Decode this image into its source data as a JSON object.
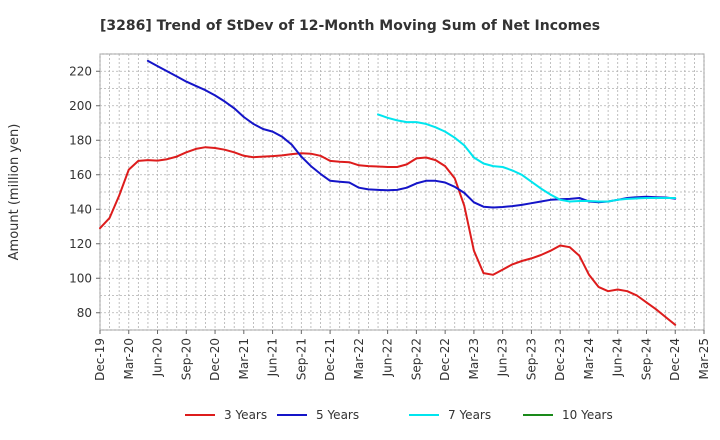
{
  "chart_data": {
    "type": "line",
    "title": "[3286]  Trend of StDev of 12-Month Moving Sum of Net Incomes",
    "ylabel": "Amount (million yen)",
    "xlabel": "",
    "ylim": [
      70,
      230
    ],
    "yticks": [
      80,
      100,
      120,
      140,
      160,
      180,
      200,
      220
    ],
    "x_range": [
      "2019-12",
      "2025-03"
    ],
    "x_ticks": [
      "Dec-19",
      "Mar-20",
      "Jun-20",
      "Sep-20",
      "Dec-20",
      "Mar-21",
      "Jun-21",
      "Sep-21",
      "Dec-21",
      "Mar-22",
      "Jun-22",
      "Sep-22",
      "Dec-22",
      "Mar-23",
      "Jun-23",
      "Sep-23",
      "Dec-23",
      "Mar-24",
      "Jun-24",
      "Sep-24",
      "Dec-24",
      "Mar-25"
    ],
    "grid": true,
    "legend_position": "bottom",
    "series": [
      {
        "name": "3 Years",
        "color": "#dd1c1c",
        "points": [
          [
            "2019-12",
            129
          ],
          [
            "2020-01",
            135
          ],
          [
            "2020-02",
            148
          ],
          [
            "2020-03",
            163
          ],
          [
            "2020-04",
            168
          ],
          [
            "2020-05",
            168.5
          ],
          [
            "2020-06",
            168.2
          ],
          [
            "2020-07",
            169
          ],
          [
            "2020-08",
            170.5
          ],
          [
            "2020-09",
            173
          ],
          [
            "2020-10",
            175
          ],
          [
            "2020-11",
            176
          ],
          [
            "2020-12",
            175.5
          ],
          [
            "2021-01",
            174.5
          ],
          [
            "2021-02",
            173
          ],
          [
            "2021-03",
            171
          ],
          [
            "2021-04",
            170.2
          ],
          [
            "2021-05",
            170.5
          ],
          [
            "2021-06",
            170.8
          ],
          [
            "2021-07",
            171.2
          ],
          [
            "2021-08",
            172
          ],
          [
            "2021-09",
            172.5
          ],
          [
            "2021-10",
            172.2
          ],
          [
            "2021-11",
            171
          ],
          [
            "2021-12",
            168
          ],
          [
            "2022-01",
            167.5
          ],
          [
            "2022-02",
            167.3
          ],
          [
            "2022-03",
            165.5
          ],
          [
            "2022-04",
            165
          ],
          [
            "2022-05",
            164.8
          ],
          [
            "2022-06",
            164.5
          ],
          [
            "2022-07",
            164.5
          ],
          [
            "2022-08",
            166
          ],
          [
            "2022-09",
            169.5
          ],
          [
            "2022-10",
            170
          ],
          [
            "2022-11",
            168.5
          ],
          [
            "2022-12",
            165
          ],
          [
            "2023-01",
            158
          ],
          [
            "2023-02",
            142
          ],
          [
            "2023-03",
            116
          ],
          [
            "2023-04",
            103
          ],
          [
            "2023-05",
            102
          ],
          [
            "2023-06",
            105
          ],
          [
            "2023-07",
            108
          ],
          [
            "2023-08",
            110
          ],
          [
            "2023-09",
            111.5
          ],
          [
            "2023-10",
            113.5
          ],
          [
            "2023-11",
            116
          ],
          [
            "2023-12",
            119
          ],
          [
            "2024-01",
            118
          ],
          [
            "2024-02",
            113
          ],
          [
            "2024-03",
            102
          ],
          [
            "2024-04",
            95
          ],
          [
            "2024-05",
            92.5
          ],
          [
            "2024-06",
            93.5
          ],
          [
            "2024-07",
            92.5
          ],
          [
            "2024-08",
            90
          ],
          [
            "2024-09",
            86
          ],
          [
            "2024-10",
            82
          ],
          [
            "2024-11",
            77.5
          ],
          [
            "2024-12",
            73
          ]
        ]
      },
      {
        "name": "5 Years",
        "color": "#1414c8",
        "points": [
          [
            "2020-05",
            226
          ],
          [
            "2020-06",
            223
          ],
          [
            "2020-07",
            220
          ],
          [
            "2020-08",
            217
          ],
          [
            "2020-09",
            214
          ],
          [
            "2020-10",
            211.5
          ],
          [
            "2020-11",
            209
          ],
          [
            "2020-12",
            206
          ],
          [
            "2021-01",
            202.5
          ],
          [
            "2021-02",
            198.5
          ],
          [
            "2021-03",
            193.5
          ],
          [
            "2021-04",
            189.5
          ],
          [
            "2021-05",
            186.5
          ],
          [
            "2021-06",
            185
          ],
          [
            "2021-07",
            182
          ],
          [
            "2021-08",
            177.5
          ],
          [
            "2021-09",
            170.5
          ],
          [
            "2021-10",
            165
          ],
          [
            "2021-11",
            160.5
          ],
          [
            "2021-12",
            156.5
          ],
          [
            "2022-01",
            156
          ],
          [
            "2022-02",
            155.5
          ],
          [
            "2022-03",
            152.5
          ],
          [
            "2022-04",
            151.5
          ],
          [
            "2022-05",
            151.2
          ],
          [
            "2022-06",
            151
          ],
          [
            "2022-07",
            151.2
          ],
          [
            "2022-08",
            152.5
          ],
          [
            "2022-09",
            155
          ],
          [
            "2022-10",
            156.5
          ],
          [
            "2022-11",
            156.5
          ],
          [
            "2022-12",
            155.5
          ],
          [
            "2023-01",
            153
          ],
          [
            "2023-02",
            149.5
          ],
          [
            "2023-03",
            144
          ],
          [
            "2023-04",
            141.5
          ],
          [
            "2023-05",
            141
          ],
          [
            "2023-06",
            141.3
          ],
          [
            "2023-07",
            141.8
          ],
          [
            "2023-08",
            142.5
          ],
          [
            "2023-09",
            143.5
          ],
          [
            "2023-10",
            144.5
          ],
          [
            "2023-11",
            145.5
          ],
          [
            "2023-12",
            145.8
          ],
          [
            "2024-01",
            146
          ],
          [
            "2024-02",
            146.5
          ],
          [
            "2024-03",
            144.5
          ],
          [
            "2024-04",
            144
          ],
          [
            "2024-05",
            144.5
          ],
          [
            "2024-06",
            145.5
          ],
          [
            "2024-07",
            146.5
          ],
          [
            "2024-08",
            147
          ],
          [
            "2024-09",
            147.2
          ],
          [
            "2024-10",
            147
          ],
          [
            "2024-11",
            146.8
          ],
          [
            "2024-12",
            146.2
          ]
        ]
      },
      {
        "name": "7 Years",
        "color": "#00e5ee",
        "points": [
          [
            "2022-05",
            195
          ],
          [
            "2022-06",
            193
          ],
          [
            "2022-07",
            191.5
          ],
          [
            "2022-08",
            190.5
          ],
          [
            "2022-09",
            190.5
          ],
          [
            "2022-10",
            189.5
          ],
          [
            "2022-11",
            187.5
          ],
          [
            "2022-12",
            185
          ],
          [
            "2023-01",
            181.5
          ],
          [
            "2023-02",
            177
          ],
          [
            "2023-03",
            170
          ],
          [
            "2023-04",
            166.5
          ],
          [
            "2023-05",
            165
          ],
          [
            "2023-06",
            164.5
          ],
          [
            "2023-07",
            162.5
          ],
          [
            "2023-08",
            160
          ],
          [
            "2023-09",
            156
          ],
          [
            "2023-10",
            152
          ],
          [
            "2023-11",
            148.5
          ],
          [
            "2023-12",
            145.5
          ],
          [
            "2024-01",
            144.5
          ],
          [
            "2024-02",
            144.8
          ],
          [
            "2024-03",
            144.8
          ],
          [
            "2024-04",
            144.5
          ],
          [
            "2024-05",
            144.5
          ],
          [
            "2024-06",
            145.5
          ],
          [
            "2024-07",
            146
          ],
          [
            "2024-08",
            146.3
          ],
          [
            "2024-09",
            146.5
          ],
          [
            "2024-10",
            146.5
          ],
          [
            "2024-11",
            146.5
          ],
          [
            "2024-12",
            146.5
          ]
        ]
      },
      {
        "name": "10 Years",
        "color": "#1a8a1a",
        "points": []
      }
    ]
  }
}
